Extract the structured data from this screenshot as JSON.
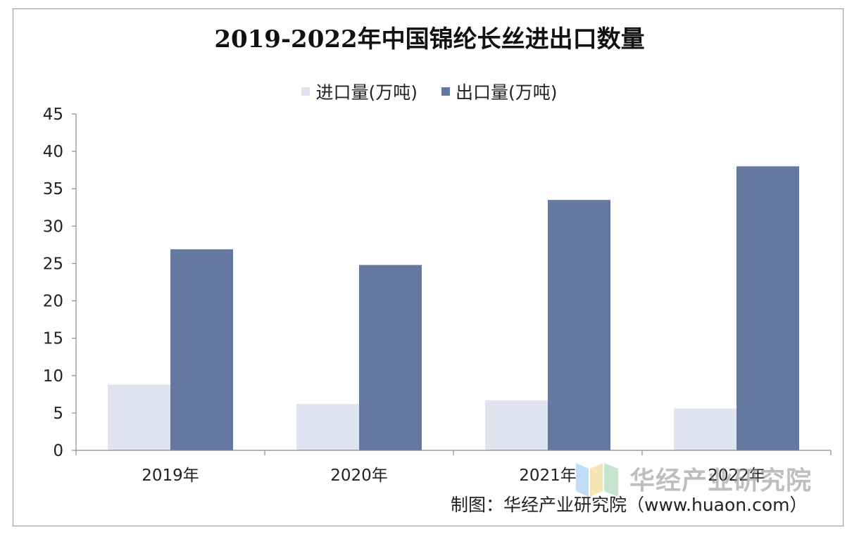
{
  "chart_data": {
    "type": "bar",
    "title": "2019-2022年中国锦纶长丝进出口数量",
    "categories": [
      "2019年",
      "2020年",
      "2021年",
      "2022年"
    ],
    "series": [
      {
        "name": "进口量(万吨)",
        "values": [
          8.8,
          6.2,
          6.7,
          5.6
        ],
        "color": "#e0e4f0"
      },
      {
        "name": "出口量(万吨)",
        "values": [
          26.9,
          24.8,
          33.5,
          38.0
        ],
        "color": "#6478a0"
      }
    ],
    "ylim": [
      0,
      45
    ],
    "yticks": [
      "0",
      "5",
      "10",
      "15",
      "20",
      "25",
      "30",
      "35",
      "40",
      "45"
    ],
    "xlabel": "",
    "ylabel": "",
    "legend": "top-center",
    "grid": false
  },
  "watermark": {
    "text": "华经产业研究院"
  },
  "source": {
    "text": "制图：华经产业研究院（www.huaon.com）"
  }
}
